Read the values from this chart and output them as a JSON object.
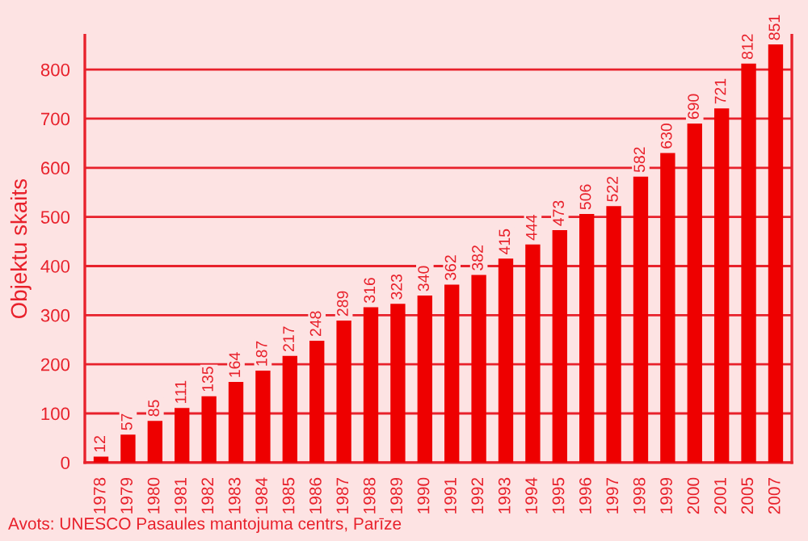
{
  "chart_data": {
    "type": "bar",
    "ylabel": "Objektu skaits",
    "categories": [
      "1978",
      "1979",
      "1980",
      "1981",
      "1982",
      "1983",
      "1984",
      "1985",
      "1986",
      "1987",
      "1988",
      "1989",
      "1990",
      "1991",
      "1992",
      "1993",
      "1994",
      "1995",
      "1996",
      "1997",
      "1998",
      "1999",
      "2000",
      "2001",
      "2005",
      "2007"
    ],
    "values": [
      12,
      57,
      85,
      111,
      135,
      164,
      187,
      217,
      248,
      289,
      316,
      323,
      340,
      362,
      382,
      415,
      444,
      473,
      506,
      522,
      582,
      630,
      690,
      721,
      812,
      851
    ],
    "color": "#ee0000",
    "ylim": [
      0,
      870
    ],
    "yticks": [
      0,
      100,
      200,
      300,
      400,
      500,
      600,
      700,
      800
    ],
    "grid": "y",
    "data_labels": true,
    "annotations": [
      "Avots: UNESCO Pasaules mantojuma centrs, Parīze"
    ]
  }
}
